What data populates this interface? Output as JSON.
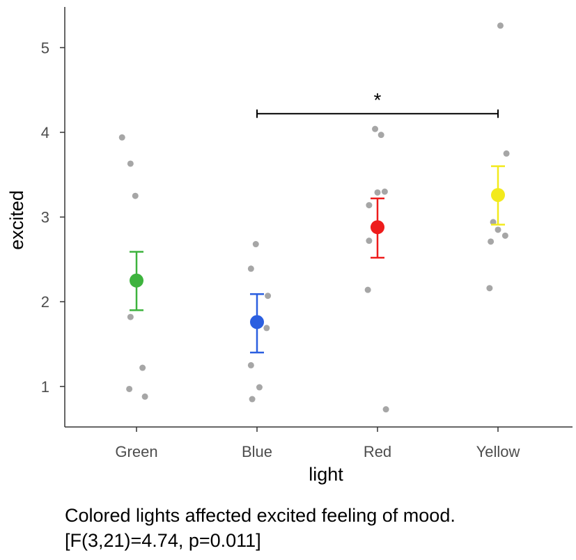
{
  "chart_data": {
    "type": "scatter",
    "xlabel": "light",
    "ylabel": "excited",
    "categories": [
      "Green",
      "Blue",
      "Red",
      "Yellow"
    ],
    "yticks": [
      1,
      2,
      3,
      4,
      5
    ],
    "ylim": [
      0.5,
      5.45
    ],
    "groups": [
      {
        "name": "Green",
        "color": "#3db33d",
        "mean": 2.25,
        "ci_low": 1.9,
        "ci_high": 2.59,
        "points": [
          {
            "jitter": -0.12,
            "y": 3.94
          },
          {
            "jitter": -0.05,
            "y": 3.63
          },
          {
            "jitter": -0.01,
            "y": 3.25
          },
          {
            "jitter": -0.05,
            "y": 1.82
          },
          {
            "jitter": 0.05,
            "y": 1.22
          },
          {
            "jitter": -0.06,
            "y": 0.97
          },
          {
            "jitter": 0.07,
            "y": 0.88
          }
        ]
      },
      {
        "name": "Blue",
        "color": "#2b5fe0",
        "mean": 1.76,
        "ci_low": 1.4,
        "ci_high": 2.09,
        "points": [
          {
            "jitter": -0.01,
            "y": 2.68
          },
          {
            "jitter": -0.05,
            "y": 2.39
          },
          {
            "jitter": 0.09,
            "y": 2.07
          },
          {
            "jitter": 0.08,
            "y": 1.69
          },
          {
            "jitter": -0.05,
            "y": 1.25
          },
          {
            "jitter": 0.02,
            "y": 0.99
          },
          {
            "jitter": -0.04,
            "y": 0.85
          }
        ]
      },
      {
        "name": "Red",
        "color": "#ee1c1c",
        "mean": 2.88,
        "ci_low": 2.52,
        "ci_high": 3.22,
        "points": [
          {
            "jitter": -0.02,
            "y": 4.04
          },
          {
            "jitter": 0.03,
            "y": 3.97
          },
          {
            "jitter": 0.0,
            "y": 3.29
          },
          {
            "jitter": 0.06,
            "y": 3.3
          },
          {
            "jitter": -0.07,
            "y": 3.14
          },
          {
            "jitter": -0.07,
            "y": 2.72
          },
          {
            "jitter": -0.08,
            "y": 2.14
          },
          {
            "jitter": 0.07,
            "y": 0.73
          }
        ]
      },
      {
        "name": "Yellow",
        "color": "#f3ea1c",
        "mean": 3.26,
        "ci_low": 2.91,
        "ci_high": 3.6,
        "points": [
          {
            "jitter": 0.02,
            "y": 5.26
          },
          {
            "jitter": 0.07,
            "y": 3.75
          },
          {
            "jitter": -0.04,
            "y": 2.94
          },
          {
            "jitter": 0.0,
            "y": 2.85
          },
          {
            "jitter": 0.06,
            "y": 2.78
          },
          {
            "jitter": -0.06,
            "y": 2.71
          },
          {
            "jitter": -0.07,
            "y": 2.16
          }
        ]
      }
    ],
    "annotations": [
      {
        "type": "significance",
        "from": "Blue",
        "to": "Yellow",
        "y": 4.22,
        "label": "*"
      }
    ]
  },
  "caption": {
    "line1": "Colored lights affected excited feeling of mood.",
    "line2": "[F(3,21)=4.74, p=0.011]"
  },
  "colors": {
    "points": "#a6a6a6",
    "axis": "#333333",
    "tick_labels": "#4d4d4d"
  }
}
